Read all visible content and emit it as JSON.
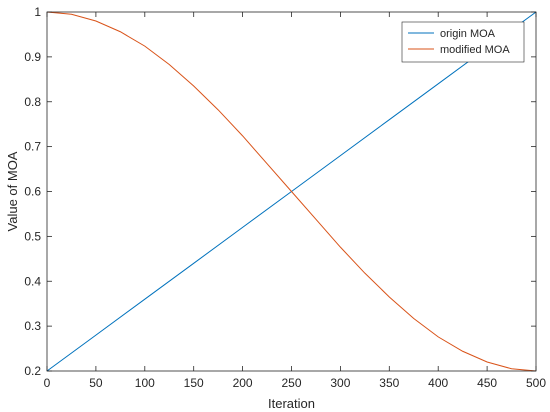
{
  "chart_data": {
    "type": "line",
    "xlabel": "Iteration",
    "ylabel": "Value of MOA",
    "xlim": [
      0,
      500
    ],
    "ylim": [
      0.2,
      1
    ],
    "x_ticks": [
      0,
      50,
      100,
      150,
      200,
      250,
      300,
      350,
      400,
      450,
      500
    ],
    "y_ticks": [
      0.2,
      0.3,
      0.4,
      0.5,
      0.6,
      0.7,
      0.8,
      0.9,
      1
    ],
    "grid": false,
    "legend_position": "top-right",
    "series": [
      {
        "name": "origin MOA",
        "color": "#0072BD",
        "x": [
          0,
          50,
          100,
          150,
          200,
          250,
          300,
          350,
          400,
          450,
          500
        ],
        "y": [
          0.2,
          0.28,
          0.36,
          0.44,
          0.52,
          0.6,
          0.68,
          0.76,
          0.84,
          0.92,
          1.0
        ]
      },
      {
        "name": "modified MOA",
        "color": "#D95319",
        "x": [
          0,
          25,
          50,
          75,
          100,
          125,
          150,
          175,
          200,
          225,
          250,
          275,
          300,
          325,
          350,
          375,
          400,
          425,
          450,
          475,
          500
        ],
        "y": [
          1.0,
          0.995,
          0.98,
          0.956,
          0.924,
          0.883,
          0.835,
          0.782,
          0.724,
          0.662,
          0.6,
          0.538,
          0.476,
          0.418,
          0.365,
          0.317,
          0.276,
          0.244,
          0.22,
          0.205,
          0.2
        ]
      }
    ]
  }
}
